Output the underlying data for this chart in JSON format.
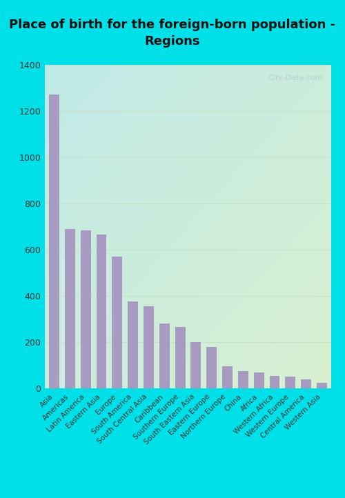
{
  "title": "Place of birth for the foreign-born population -\nRegions",
  "categories": [
    "Asia",
    "Americas",
    "Latin America",
    "Eastern Asia",
    "Europe",
    "South America",
    "South Central Asia",
    "Caribbean",
    "Southern Europe",
    "South Eastern Asia",
    "Eastern Europe",
    "Northern Europe",
    "China",
    "Africa",
    "Western Africa",
    "Western Europe",
    "Central America",
    "Western Asia"
  ],
  "values": [
    1270,
    690,
    685,
    665,
    570,
    375,
    355,
    280,
    265,
    200,
    180,
    95,
    75,
    70,
    55,
    50,
    40,
    25
  ],
  "bar_color": "#a89bc2",
  "outer_bg": "#00e0e8",
  "plot_bg_topleft": "#c0eae8",
  "plot_bg_bottomright": "#d8f0d0",
  "title_fontsize": 13,
  "ylim": [
    0,
    1400
  ],
  "yticks": [
    0,
    200,
    400,
    600,
    800,
    1000,
    1200,
    1400
  ],
  "watermark": "City-Data.com",
  "grid_color": "#c8dfc8"
}
